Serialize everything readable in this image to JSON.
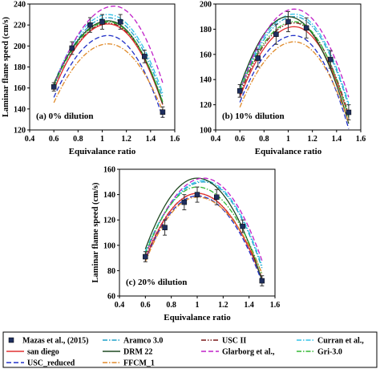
{
  "legend": [
    {
      "label": "Mazas et al., (2015)",
      "kind": "marker",
      "color": "#1f2f5f"
    },
    {
      "label": "Aramco 3.0",
      "kind": "dashdot",
      "color": "#1fa0c8"
    },
    {
      "label": "USC II",
      "kind": "dashdotdot",
      "color": "#7a1a1a"
    },
    {
      "label": "Curran et al.,",
      "kind": "dashdot",
      "color": "#33c3e8"
    },
    {
      "label": "san diego",
      "kind": "solid",
      "color": "#e03030"
    },
    {
      "label": "DRM 22",
      "kind": "solid",
      "color": "#1f4a22"
    },
    {
      "label": "Glarborg et al.,",
      "kind": "dashed",
      "color": "#c020c8"
    },
    {
      "label": "Gri-3.0",
      "kind": "dashdot",
      "color": "#33b833"
    },
    {
      "label": "USC_reduced",
      "kind": "dashed",
      "color": "#2030c8"
    },
    {
      "label": "FFCM_1",
      "kind": "dashdot",
      "color": "#e08a2a"
    }
  ],
  "chart_data": [
    {
      "type": "line",
      "annotation": "(a) 0% dilution",
      "xlabel": "Equivalance ratio",
      "ylabel": "Laminar flame speed (cm/s)",
      "xlim": [
        0.4,
        1.6
      ],
      "ylim": [
        120,
        240
      ],
      "xticks": [
        "0.4",
        "0.6",
        "0.8",
        "1",
        "1.2",
        "1.4",
        "1.6"
      ],
      "yticks": [
        "120",
        "140",
        "160",
        "180",
        "200",
        "220",
        "240"
      ],
      "experiment": {
        "name": "Mazas et al., (2015)",
        "x": [
          0.6,
          0.75,
          0.9,
          1.0,
          1.15,
          1.35,
          1.5
        ],
        "y": [
          161,
          198,
          220,
          223,
          223,
          190,
          137
        ],
        "err": [
          4,
          6,
          7,
          7,
          7,
          6,
          5
        ]
      },
      "series": [
        {
          "name": "Aramco 3.0",
          "peak_x": 1.05,
          "peak_y": 227,
          "left_y": 161,
          "right_y": 151
        },
        {
          "name": "USC II",
          "peak_x": 1.05,
          "peak_y": 222,
          "left_y": 158,
          "right_y": 146
        },
        {
          "name": "Curran et al.,",
          "peak_x": 1.05,
          "peak_y": 230,
          "left_y": 164,
          "right_y": 155
        },
        {
          "name": "san diego",
          "peak_x": 1.05,
          "peak_y": 221,
          "left_y": 158,
          "right_y": 144
        },
        {
          "name": "DRM 22",
          "peak_x": 1.05,
          "peak_y": 224,
          "left_y": 164,
          "right_y": 145
        },
        {
          "name": "Glarborg et al.,",
          "peak_x": 1.1,
          "peak_y": 238,
          "left_y": 162,
          "right_y": 165
        },
        {
          "name": "Gri-3.0",
          "peak_x": 1.05,
          "peak_y": 223,
          "left_y": 162,
          "right_y": 147
        },
        {
          "name": "USC_reduced",
          "peak_x": 1.05,
          "peak_y": 210,
          "left_y": 151,
          "right_y": 132
        },
        {
          "name": "FFCM_1",
          "peak_x": 1.05,
          "peak_y": 202,
          "left_y": 146,
          "right_y": 138
        }
      ]
    },
    {
      "type": "line",
      "annotation": "(b) 10% dilution",
      "xlabel": "Equivalance ratio",
      "ylabel": "",
      "xlim": [
        0.4,
        1.6
      ],
      "ylim": [
        100,
        200
      ],
      "xticks": [
        "0.4",
        "0.6",
        "0.8",
        "1",
        "1.2",
        "1.4",
        "1.6"
      ],
      "yticks": [
        "100",
        "120",
        "140",
        "160",
        "180",
        "200"
      ],
      "experiment": {
        "name": "Mazas et al., (2015)",
        "x": [
          0.6,
          0.75,
          0.9,
          1.0,
          1.15,
          1.35,
          1.5
        ],
        "y": [
          131,
          157,
          176,
          186,
          181,
          156,
          114
        ],
        "err": [
          5,
          7,
          8,
          8,
          8,
          7,
          6
        ]
      },
      "series": [
        {
          "name": "Aramco 3.0",
          "peak_x": 1.05,
          "peak_y": 190,
          "left_y": 131,
          "right_y": 119
        },
        {
          "name": "USC II",
          "peak_x": 1.05,
          "peak_y": 185,
          "left_y": 128,
          "right_y": 112
        },
        {
          "name": "Curran et al.,",
          "peak_x": 1.05,
          "peak_y": 192,
          "left_y": 133,
          "right_y": 121
        },
        {
          "name": "san diego",
          "peak_x": 1.05,
          "peak_y": 182,
          "left_y": 126,
          "right_y": 110
        },
        {
          "name": "DRM 22",
          "peak_x": 1.0,
          "peak_y": 190,
          "left_y": 134,
          "right_y": 105
        },
        {
          "name": "Glarborg et al.,",
          "peak_x": 1.05,
          "peak_y": 196,
          "left_y": 130,
          "right_y": 126
        },
        {
          "name": "Gri-3.0",
          "peak_x": 1.05,
          "peak_y": 186,
          "left_y": 131,
          "right_y": 110
        },
        {
          "name": "USC_reduced",
          "peak_x": 1.05,
          "peak_y": 175,
          "left_y": 122,
          "right_y": 101
        },
        {
          "name": "FFCM_1",
          "peak_x": 1.05,
          "peak_y": 170,
          "left_y": 118,
          "right_y": 106
        }
      ]
    },
    {
      "type": "line",
      "annotation": "(c) 20% dilution",
      "xlabel": "Equivalance ratio",
      "ylabel": "Laminar flame speed (cm/s)",
      "xlim": [
        0.4,
        1.6
      ],
      "ylim": [
        60,
        160
      ],
      "xticks": [
        "0.4",
        "0.6",
        "0.8",
        "1",
        "1.2",
        "1.4",
        "1.6"
      ],
      "yticks": [
        "60",
        "80",
        "100",
        "120",
        "140",
        "160"
      ],
      "experiment": {
        "name": "Mazas et al., (2015)",
        "x": [
          0.6,
          0.75,
          0.9,
          1.0,
          1.15,
          1.35,
          1.5
        ],
        "y": [
          91,
          114,
          134,
          140,
          138,
          115,
          72
        ],
        "err": [
          4,
          6,
          6,
          6,
          6,
          5,
          4
        ]
      },
      "series": [
        {
          "name": "Aramco 3.0",
          "peak_x": 1.05,
          "peak_y": 150,
          "left_y": 95,
          "right_y": 82
        },
        {
          "name": "USC II",
          "peak_x": 1.0,
          "peak_y": 141,
          "left_y": 90,
          "right_y": 74
        },
        {
          "name": "Curran et al.,",
          "peak_x": 1.05,
          "peak_y": 151,
          "left_y": 95,
          "right_y": 84
        },
        {
          "name": "san diego",
          "peak_x": 1.0,
          "peak_y": 141,
          "left_y": 89,
          "right_y": 73
        },
        {
          "name": "DRM 22",
          "peak_x": 1.0,
          "peak_y": 153,
          "left_y": 97,
          "right_y": 72
        },
        {
          "name": "Glarborg et al.,",
          "peak_x": 1.05,
          "peak_y": 153,
          "left_y": 92,
          "right_y": 88
        },
        {
          "name": "Gri-3.0",
          "peak_x": 1.0,
          "peak_y": 146,
          "left_y": 93,
          "right_y": 77
        },
        {
          "name": "USC_reduced",
          "peak_x": 1.0,
          "peak_y": 139,
          "left_y": 88,
          "right_y": 71
        },
        {
          "name": "FFCM_1",
          "peak_x": 1.0,
          "peak_y": 138,
          "left_y": 87,
          "right_y": 78
        }
      ]
    }
  ]
}
